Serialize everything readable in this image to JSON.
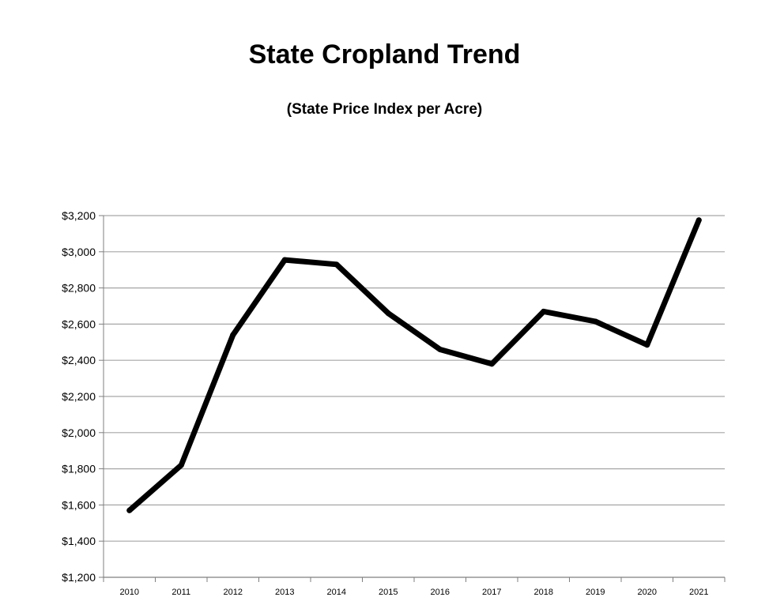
{
  "chart_data": {
    "type": "line",
    "title": "State Cropland Trend",
    "subtitle": "(State Price Index per Acre)",
    "xlabel": "",
    "ylabel": "",
    "categories": [
      "2010",
      "2011",
      "2012",
      "2013",
      "2014",
      "2015",
      "2016",
      "2017",
      "2018",
      "2019",
      "2020",
      "2021"
    ],
    "values": [
      1570,
      1820,
      2540,
      2955,
      2930,
      2660,
      2460,
      2380,
      2670,
      2615,
      2485,
      3175
    ],
    "ylim": [
      1200,
      3200
    ],
    "yticks": [
      1200,
      1400,
      1600,
      1800,
      2000,
      2200,
      2400,
      2600,
      2800,
      3000,
      3200
    ],
    "ytick_labels": [
      "$1,200",
      "$1,400",
      "$1,600",
      "$1,800",
      "$2,000",
      "$2,200",
      "$2,400",
      "$2,600",
      "$2,800",
      "$3,000",
      "$3,200"
    ],
    "grid": true,
    "line_color": "#000000",
    "grid_color": "#a6a6a6"
  }
}
